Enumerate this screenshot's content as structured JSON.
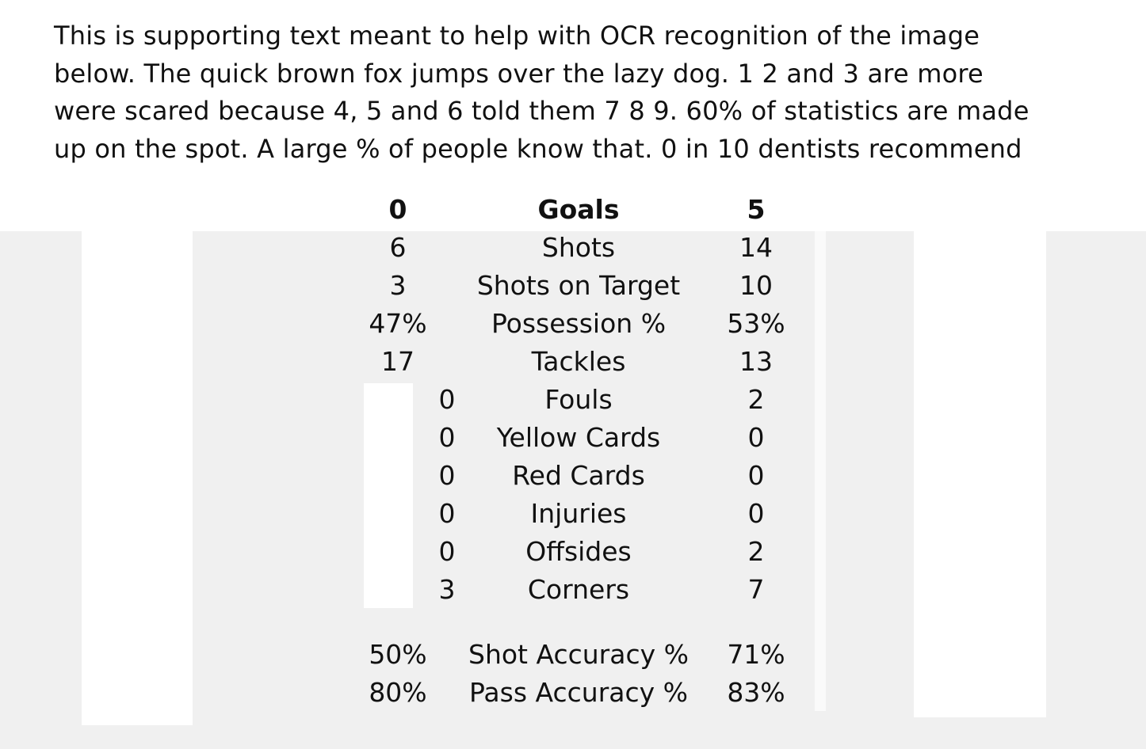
{
  "intro_lines": [
    "This is supporting text meant to help with OCR recognition of the image",
    "below. The quick brown fox jumps over the lazy dog. 1 2 and 3 are more",
    "were scared because 4, 5 and 6 told them 7 8 9. 60% of statistics are made",
    "up on the spot. A large % of people know that. 0 in 10 dentists recommend"
  ],
  "stats": [
    {
      "label": "Goals",
      "home": "0",
      "away": "5"
    },
    {
      "label": "Shots",
      "home": "6",
      "away": "14"
    },
    {
      "label": "Shots on Target",
      "home": "3",
      "away": "10"
    },
    {
      "label": "Possession %",
      "home": "47%",
      "away": "53%"
    },
    {
      "label": "Tackles",
      "home": "17",
      "away": "13"
    },
    {
      "label": "Fouls",
      "home": "0",
      "away": "2"
    },
    {
      "label": "Yellow Cards",
      "home": "0",
      "away": "0"
    },
    {
      "label": "Red Cards",
      "home": "0",
      "away": "0"
    },
    {
      "label": "Injuries",
      "home": "0",
      "away": "0"
    },
    {
      "label": "Offsides",
      "home": "0",
      "away": "2"
    },
    {
      "label": "Corners",
      "home": "3",
      "away": "7"
    }
  ],
  "accuracy": [
    {
      "label": "Shot Accuracy %",
      "home": "50%",
      "away": "71%"
    },
    {
      "label": "Pass Accuracy %",
      "home": "80%",
      "away": "83%"
    }
  ],
  "colors": {
    "text": "#111111",
    "background": "#f0f0f0",
    "panel": "#ffffff"
  }
}
